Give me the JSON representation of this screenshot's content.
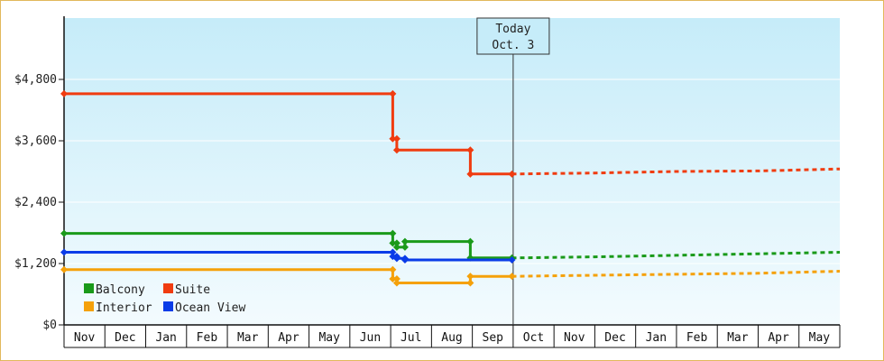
{
  "chart_data": {
    "type": "line",
    "ylim": [
      0,
      6000
    ],
    "yticks": [
      {
        "value": 0,
        "label": "$0"
      },
      {
        "value": 1200,
        "label": "$1,200"
      },
      {
        "value": 2400,
        "label": "$2,400"
      },
      {
        "value": 3600,
        "label": "$3,600"
      },
      {
        "value": 4800,
        "label": "$4,800"
      }
    ],
    "months": [
      "Nov",
      "Dec",
      "Jan",
      "Feb",
      "Mar",
      "Apr",
      "May",
      "Jun",
      "Jul",
      "Aug",
      "Sep",
      "Oct",
      "Nov",
      "Dec",
      "Jan",
      "Feb",
      "Mar",
      "Apr",
      "May"
    ],
    "today": {
      "line1": "Today",
      "line2": "Oct. 3",
      "month_index": 11
    },
    "colors": {
      "Balcony": "#1a9a1a",
      "Suite": "#f03c10",
      "Interior": "#f5a10a",
      "Ocean View": "#0a3ce8"
    },
    "legend": [
      "Balcony",
      "Suite",
      "Interior",
      "Ocean View"
    ],
    "series": [
      {
        "name": "Suite",
        "points": [
          [
            0.0,
            4520
          ],
          [
            8.05,
            4520
          ],
          [
            8.05,
            3640
          ],
          [
            8.15,
            3640
          ],
          [
            8.15,
            3420
          ],
          [
            9.95,
            3420
          ],
          [
            9.95,
            2950
          ],
          [
            10.97,
            2950
          ]
        ],
        "forecast": [
          [
            10.97,
            2950
          ],
          [
            13.0,
            2970
          ],
          [
            15.0,
            3000
          ],
          [
            17.0,
            3010
          ],
          [
            19.0,
            3050
          ]
        ]
      },
      {
        "name": "Balcony",
        "points": [
          [
            0.0,
            1790
          ],
          [
            8.05,
            1790
          ],
          [
            8.05,
            1600
          ],
          [
            8.15,
            1600
          ],
          [
            8.15,
            1520
          ],
          [
            8.35,
            1520
          ],
          [
            8.35,
            1630
          ],
          [
            9.95,
            1630
          ],
          [
            9.95,
            1310
          ],
          [
            10.97,
            1310
          ]
        ],
        "forecast": [
          [
            10.97,
            1310
          ],
          [
            13.0,
            1330
          ],
          [
            15.0,
            1360
          ],
          [
            17.0,
            1390
          ],
          [
            19.0,
            1420
          ]
        ]
      },
      {
        "name": "Ocean View",
        "points": [
          [
            0.0,
            1420
          ],
          [
            8.05,
            1420
          ],
          [
            8.05,
            1340
          ],
          [
            8.15,
            1340
          ],
          [
            8.15,
            1300
          ],
          [
            8.35,
            1300
          ],
          [
            8.35,
            1270
          ],
          [
            9.95,
            1270
          ],
          [
            9.95,
            1270
          ],
          [
            10.97,
            1270
          ]
        ],
        "forecast": []
      },
      {
        "name": "Interior",
        "points": [
          [
            0.0,
            1080
          ],
          [
            8.05,
            1080
          ],
          [
            8.05,
            900
          ],
          [
            8.15,
            900
          ],
          [
            8.15,
            820
          ],
          [
            8.35,
            820
          ],
          [
            8.35,
            820
          ],
          [
            9.95,
            820
          ],
          [
            9.95,
            950
          ],
          [
            10.97,
            950
          ]
        ],
        "forecast": [
          [
            10.97,
            950
          ],
          [
            13.0,
            970
          ],
          [
            15.0,
            990
          ],
          [
            17.0,
            1010
          ],
          [
            19.0,
            1050
          ]
        ]
      }
    ]
  }
}
